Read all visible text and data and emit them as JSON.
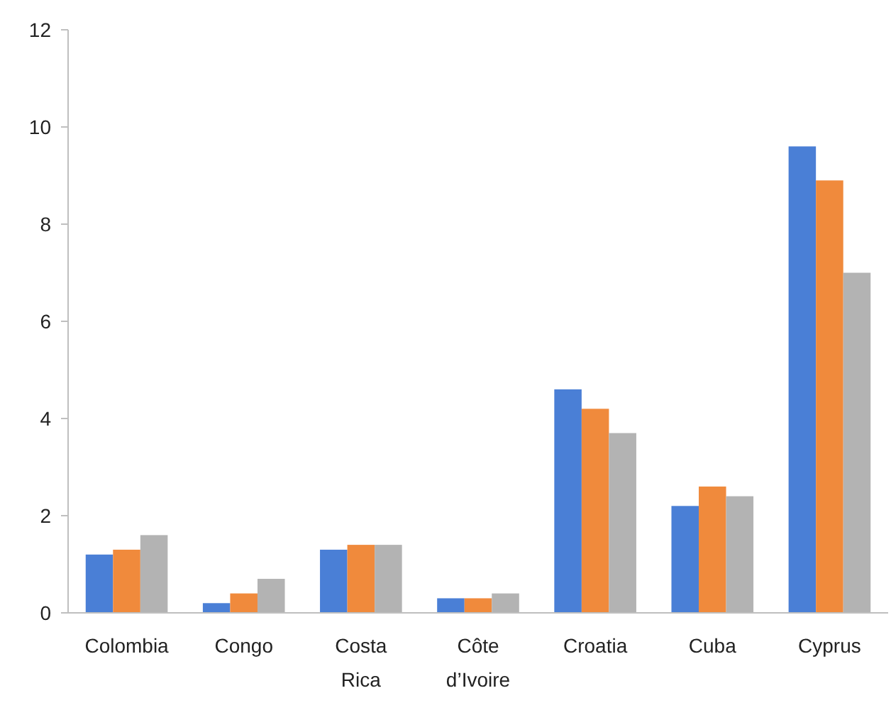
{
  "chart_data": {
    "type": "bar",
    "categories": [
      "Colombia",
      "Congo",
      "Costa Rica",
      "Côte d’Ivoire",
      "Croatia",
      "Cuba",
      "Cyprus"
    ],
    "series": [
      {
        "color": "#4a7fd6",
        "values": [
          1.2,
          0.2,
          1.3,
          0.3,
          4.6,
          2.2,
          9.6
        ]
      },
      {
        "color": "#f08a3c",
        "values": [
          1.3,
          0.4,
          1.4,
          0.3,
          4.2,
          2.6,
          8.9
        ]
      },
      {
        "color": "#b3b3b3",
        "values": [
          1.6,
          0.7,
          1.4,
          0.4,
          3.7,
          2.4,
          7.0
        ]
      }
    ],
    "ylim": [
      0,
      12
    ],
    "yticks": [
      0,
      2,
      4,
      6,
      8,
      10,
      12
    ],
    "grid": false
  }
}
